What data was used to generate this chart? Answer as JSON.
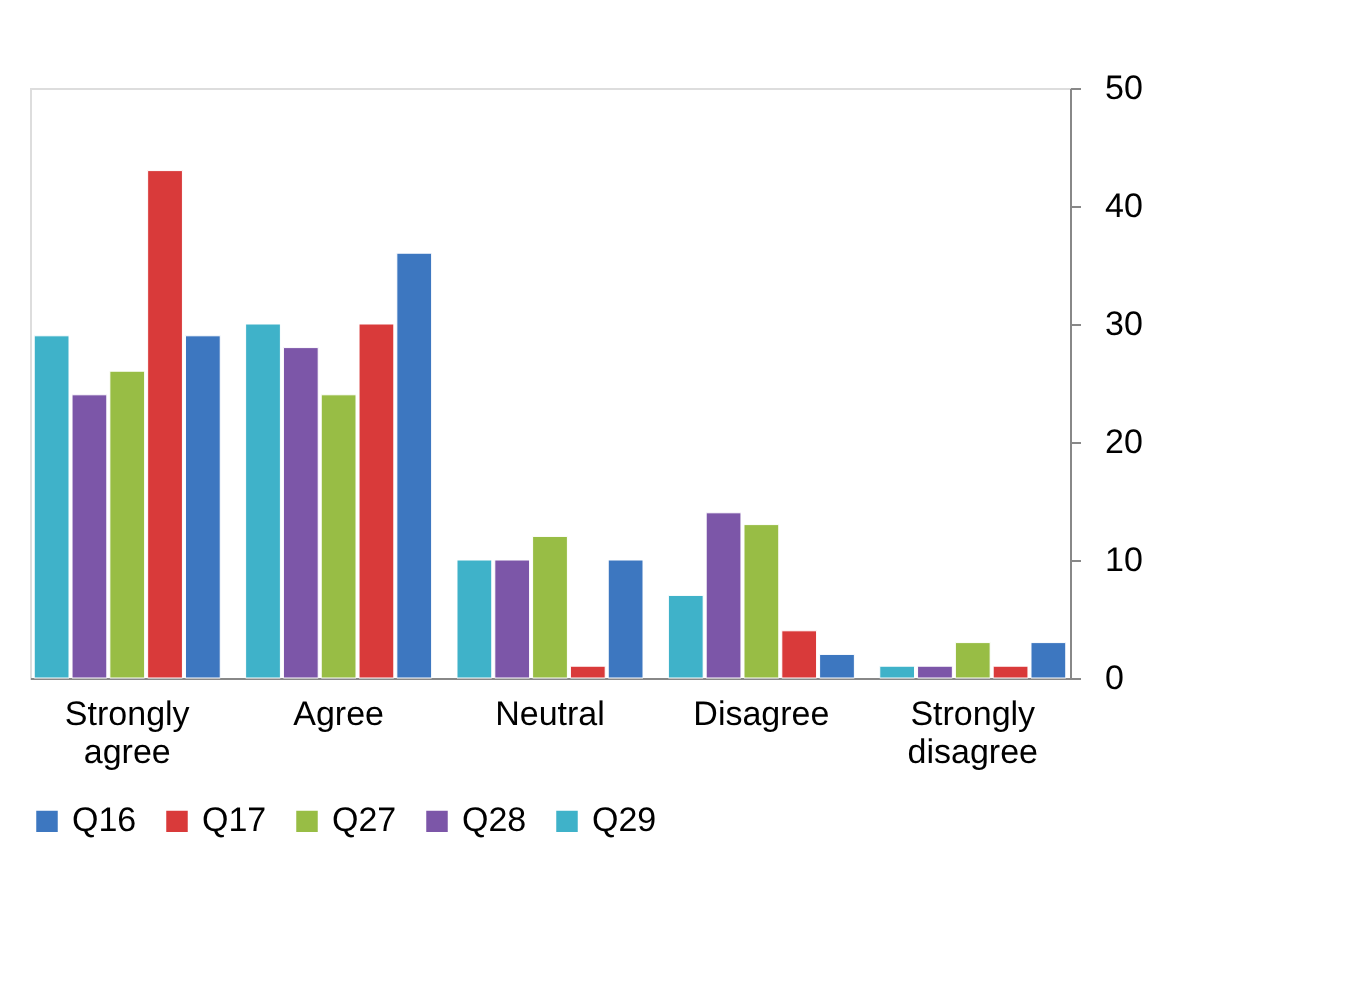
{
  "chart_data": {
    "type": "bar",
    "categories": [
      "Strongly agree",
      "Agree",
      "Neutral",
      "Disagree",
      "Strongly disagree"
    ],
    "series": [
      {
        "name": "Q16",
        "color": "#3d77c0",
        "values": [
          29,
          36,
          10,
          2,
          3
        ]
      },
      {
        "name": "Q17",
        "color": "#d93a3a",
        "values": [
          43,
          30,
          1,
          4,
          1
        ]
      },
      {
        "name": "Q27",
        "color": "#98bd45",
        "values": [
          26,
          24,
          12,
          13,
          3
        ]
      },
      {
        "name": "Q28",
        "color": "#7c56a8",
        "values": [
          24,
          28,
          10,
          14,
          1
        ]
      },
      {
        "name": "Q29",
        "color": "#3fb2c9",
        "values": [
          29,
          30,
          10,
          7,
          1
        ]
      }
    ],
    "ylim": [
      0,
      50
    ],
    "yticks": [
      0,
      10,
      20,
      30,
      40,
      50
    ],
    "grid": false,
    "legend": "bottom"
  }
}
